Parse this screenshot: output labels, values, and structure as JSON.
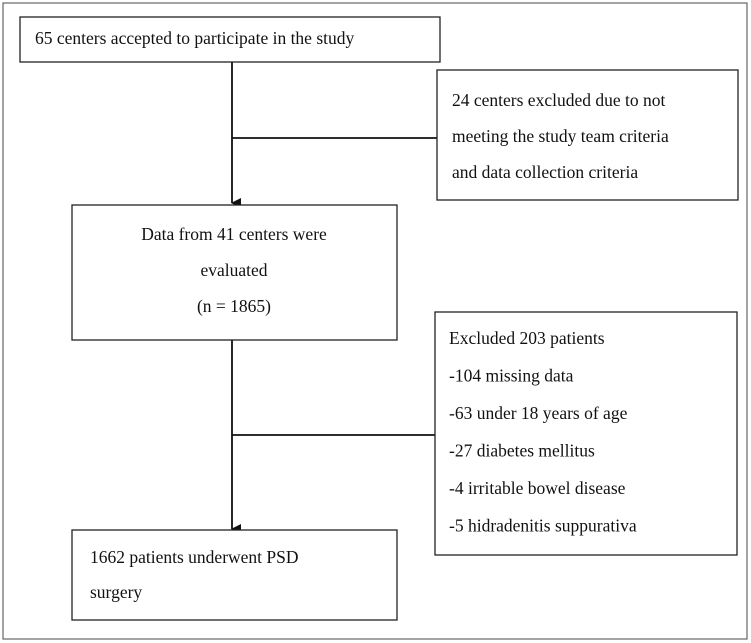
{
  "nodes": [
    {
      "lines": [
        "65 centers accepted to participate in the study"
      ]
    },
    {
      "lines": [
        "24 centers excluded due to not",
        "meeting the study team criteria",
        "and data collection criteria"
      ]
    },
    {
      "lines": [
        "Data from 41 centers were",
        "evaluated",
        "(n = 1865)"
      ]
    },
    {
      "lines": [
        "Excluded 203 patients",
        "-104 missing data",
        "-63 under 18 years of age",
        "-27 diabetes mellitus",
        "-4 irritable bowel disease",
        "-5 hidradenitis suppurativa"
      ]
    },
    {
      "lines": [
        "1662 patients underwent PSD",
        "surgery"
      ]
    }
  ]
}
